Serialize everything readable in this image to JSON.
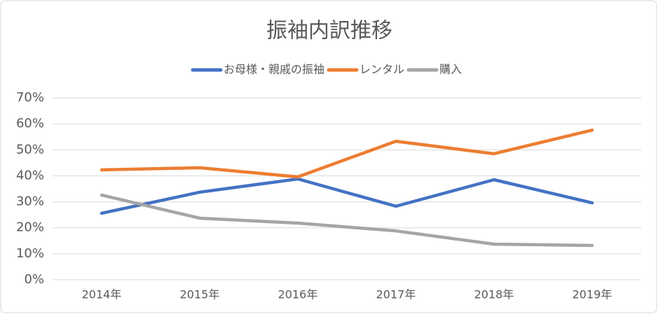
{
  "chart_data": {
    "type": "line",
    "title": "振袖内訳推移",
    "categories": [
      "2014年",
      "2015年",
      "2016年",
      "2017年",
      "2018年",
      "2019年"
    ],
    "series": [
      {
        "name": "お母様・親戚の振袖",
        "color": "#4472c4",
        "values": [
          25.6,
          33.7,
          38.8,
          28.3,
          38.5,
          29.6
        ]
      },
      {
        "name": "レンタル",
        "color": "#ed7d31",
        "values": [
          42.3,
          43.1,
          39.6,
          53.3,
          48.5,
          57.6
        ]
      },
      {
        "name": "購入",
        "color": "#a5a5a5",
        "values": [
          32.6,
          23.7,
          21.8,
          18.8,
          13.7,
          13.2
        ]
      }
    ],
    "ylim": [
      0,
      70
    ],
    "yticks": [
      {
        "value": 0,
        "label": "0%"
      },
      {
        "value": 10,
        "label": "10%"
      },
      {
        "value": 20,
        "label": "20%"
      },
      {
        "value": 30,
        "label": "30%"
      },
      {
        "value": 40,
        "label": "40%"
      },
      {
        "value": 50,
        "label": "50%"
      },
      {
        "value": 60,
        "label": "60%"
      },
      {
        "value": 70,
        "label": "70%"
      }
    ],
    "grid": true,
    "legend": "top"
  }
}
